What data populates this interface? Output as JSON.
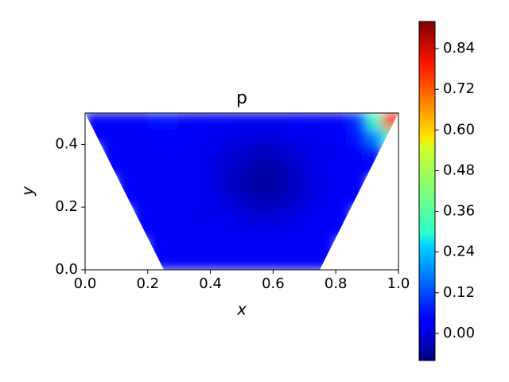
{
  "chart_data": {
    "type": "contour",
    "title": "p",
    "xlabel": "x",
    "ylabel": "y",
    "colormap": "jet",
    "xlim": [
      0,
      1
    ],
    "ylim": [
      0,
      0.5
    ],
    "xticks": [
      {
        "value": 0,
        "label": "0.0"
      },
      0.2,
      0.4,
      0.6,
      0.8,
      {
        "value": 1,
        "label": "1.0"
      }
    ],
    "yticks": [
      {
        "value": 0,
        "label": "0.0"
      },
      0.2,
      0.4
    ],
    "x": [
      0.025,
      0.075,
      0.125,
      0.175,
      0.225,
      0.275,
      0.325,
      0.375,
      0.425,
      0.475,
      0.525,
      0.575,
      0.625,
      0.675,
      0.725,
      0.775,
      0.825,
      0.875,
      0.925,
      0.975
    ],
    "y": [
      0.025,
      0.075,
      0.125,
      0.175,
      0.225,
      0.275,
      0.325,
      0.375,
      0.425,
      0.475
    ],
    "z": [
      [
        null,
        null,
        null,
        null,
        0.04,
        0.04,
        0.04,
        0.04,
        0.04,
        0.04,
        0.04,
        0.04,
        0.04,
        0.04,
        0.04,
        0.04,
        null,
        null,
        null,
        null
      ],
      [
        null,
        null,
        null,
        null,
        0.04,
        0.04,
        0.04,
        0.04,
        0.04,
        0.04,
        0.04,
        0.04,
        0.04,
        0.04,
        0.04,
        0.04,
        null,
        null,
        null,
        null
      ],
      [
        null,
        null,
        null,
        0.04,
        0.04,
        0.04,
        0.04,
        0.04,
        0.04,
        0.03,
        0.03,
        0.03,
        0.03,
        0.03,
        0.04,
        0.04,
        0.04,
        null,
        null,
        null
      ],
      [
        null,
        null,
        null,
        0.04,
        0.04,
        0.04,
        0.04,
        0.03,
        0.03,
        0.02,
        0.01,
        0.0,
        0.01,
        0.02,
        0.03,
        0.04,
        0.04,
        null,
        null,
        null
      ],
      [
        null,
        null,
        0.04,
        0.04,
        0.04,
        0.04,
        0.04,
        0.03,
        0.02,
        0.0,
        -0.02,
        -0.03,
        -0.02,
        0.0,
        0.02,
        0.03,
        0.04,
        0.04,
        null,
        null
      ],
      [
        null,
        null,
        0.04,
        0.04,
        0.04,
        0.04,
        0.04,
        0.03,
        0.01,
        -0.02,
        -0.04,
        -0.05,
        -0.04,
        -0.01,
        0.01,
        0.03,
        0.04,
        0.04,
        null,
        null
      ],
      [
        null,
        0.04,
        0.04,
        0.04,
        0.04,
        0.04,
        0.04,
        0.03,
        0.01,
        -0.01,
        -0.03,
        -0.04,
        -0.03,
        -0.01,
        0.02,
        0.03,
        0.04,
        0.04,
        0.04,
        null
      ],
      [
        null,
        0.04,
        0.04,
        0.04,
        0.04,
        0.04,
        0.04,
        0.03,
        0.02,
        0.0,
        -0.01,
        -0.02,
        -0.01,
        0.01,
        0.02,
        0.03,
        0.04,
        0.04,
        0.07,
        null
      ],
      [
        0.04,
        0.04,
        0.04,
        0.04,
        0.04,
        0.05,
        0.04,
        0.04,
        0.03,
        0.02,
        0.02,
        0.01,
        0.02,
        0.03,
        0.03,
        0.04,
        0.04,
        0.07,
        0.18,
        0.36
      ],
      [
        0.04,
        0.04,
        0.04,
        0.04,
        0.06,
        0.06,
        0.04,
        0.04,
        0.04,
        0.03,
        0.03,
        0.03,
        0.03,
        0.04,
        0.04,
        0.04,
        0.04,
        0.1,
        0.36,
        0.77
      ]
    ],
    "colorbar": {
      "lim": [
        -0.08,
        0.92
      ],
      "ticks": [
        {
          "value": 0,
          "label": "0.00"
        },
        0.12,
        0.24,
        0.36,
        0.48,
        {
          "value": 0.6,
          "label": "0.60"
        },
        0.72,
        0.84
      ]
    }
  }
}
